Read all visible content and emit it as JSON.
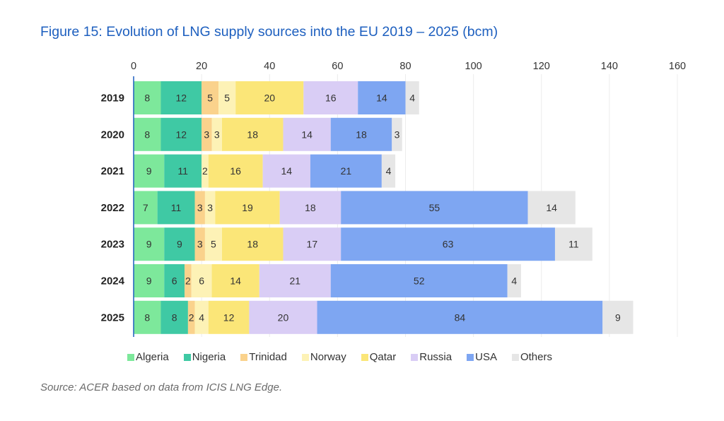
{
  "title": "Figure 15:  Evolution of LNG supply sources into the EU 2019 – 2025 (bcm)",
  "source": "Source: ACER based on data from ICIS LNG Edge.",
  "chart_data": {
    "type": "bar",
    "orientation": "horizontal",
    "stacked": true,
    "categories": [
      "2019",
      "2020",
      "2021",
      "2022",
      "2023",
      "2024",
      "2025"
    ],
    "xlim": [
      0,
      160
    ],
    "xticks": [
      0,
      20,
      40,
      60,
      80,
      100,
      120,
      140,
      160
    ],
    "grid": true,
    "legend_position": "bottom",
    "series": [
      {
        "name": "Algeria",
        "color": "#7de89b",
        "values": [
          8,
          8,
          9,
          7,
          9,
          9,
          8
        ]
      },
      {
        "name": "Nigeria",
        "color": "#3fc9a4",
        "values": [
          12,
          12,
          11,
          11,
          9,
          6,
          8
        ]
      },
      {
        "name": "Trinidad",
        "color": "#fad28c",
        "values": [
          5,
          3,
          0,
          3,
          3,
          2,
          2
        ]
      },
      {
        "name": "Norway",
        "color": "#fdf2b6",
        "values": [
          5,
          3,
          2,
          3,
          5,
          6,
          4
        ]
      },
      {
        "name": "Qatar",
        "color": "#fbe678",
        "values": [
          20,
          18,
          16,
          19,
          18,
          14,
          12
        ]
      },
      {
        "name": "Russia",
        "color": "#d9cdf5",
        "values": [
          16,
          14,
          14,
          18,
          17,
          21,
          20
        ]
      },
      {
        "name": "USA",
        "color": "#7ea6f2",
        "values": [
          14,
          18,
          21,
          55,
          63,
          52,
          84
        ]
      },
      {
        "name": "Others",
        "color": "#e6e6e6",
        "values": [
          4,
          3,
          4,
          14,
          11,
          4,
          9
        ]
      }
    ]
  }
}
